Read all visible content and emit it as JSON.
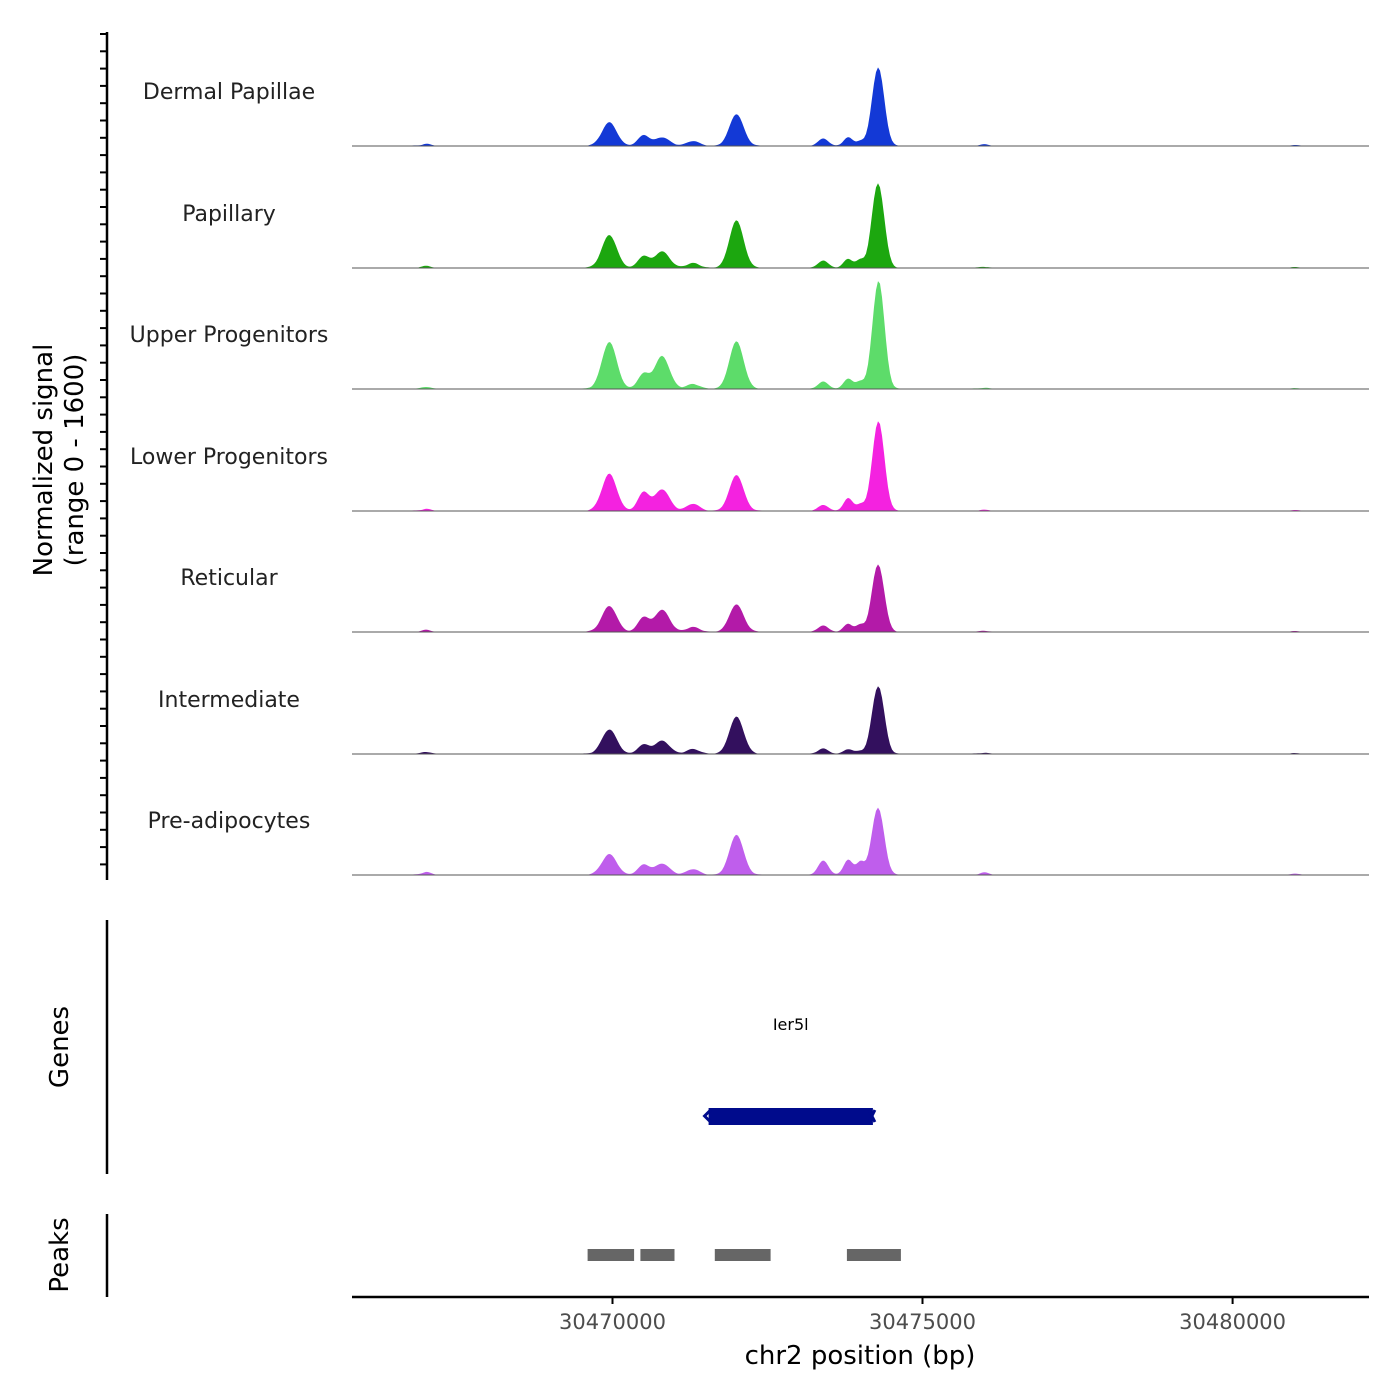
{
  "chart_data": {
    "type": "area",
    "title": "",
    "y_axis_title_line1": "Normalized signal",
    "y_axis_title_line2": "(range 0 - 1600)",
    "ylim": [
      0,
      1600
    ],
    "xlabel": "chr2 position (bp)",
    "xlim": [
      30465800,
      30482200
    ],
    "x_ticks": [
      30470000,
      30475000,
      30480000
    ],
    "x_tick_labels": [
      "30470000",
      "30475000",
      "30480000"
    ],
    "peak_centers": [
      30467000,
      30469950,
      30470500,
      30470800,
      30471300,
      30472000,
      30473400,
      30473800,
      30474000,
      30474200,
      30474300,
      30476000,
      30481000
    ],
    "tracks": [
      {
        "name": "Dermal Papillae",
        "color": "#1339d6",
        "heights": [
          40,
          500,
          230,
          180,
          100,
          680,
          160,
          180,
          100,
          330,
          1520,
          30,
          20
        ]
      },
      {
        "name": "Papillary",
        "color": "#1ca70f",
        "heights": [
          40,
          700,
          250,
          350,
          100,
          1020,
          160,
          190,
          170,
          400,
          1620,
          20,
          20
        ]
      },
      {
        "name": "Upper Progenitors",
        "color": "#5ddc6a",
        "heights": [
          40,
          1000,
          320,
          700,
          100,
          1020,
          160,
          220,
          160,
          300,
          2180,
          20,
          20
        ]
      },
      {
        "name": "Lower Progenitors",
        "color": "#f422e0",
        "heights": [
          40,
          790,
          400,
          460,
          150,
          770,
          130,
          270,
          140,
          300,
          1780,
          20,
          20
        ]
      },
      {
        "name": "Reticular",
        "color": "#b31aa8",
        "heights": [
          40,
          550,
          310,
          470,
          100,
          590,
          140,
          170,
          150,
          300,
          1300,
          20,
          20
        ]
      },
      {
        "name": "Intermediate",
        "color": "#33105e",
        "heights": [
          40,
          520,
          200,
          280,
          100,
          800,
          120,
          100,
          60,
          280,
          1320,
          20,
          20
        ]
      },
      {
        "name": "Pre-adipocytes",
        "color": "#bf5eec",
        "heights": [
          60,
          440,
          220,
          240,
          120,
          860,
          310,
          320,
          280,
          340,
          1270,
          50,
          30
        ]
      }
    ],
    "genes": {
      "title": "Genes",
      "items": [
        {
          "name": "Ier5l",
          "start": 30471550,
          "end": 30474200,
          "color": "#000b8c"
        }
      ]
    },
    "peaks": {
      "title": "Peaks",
      "color": "#666666",
      "regions": [
        [
          30469600,
          30470350
        ],
        [
          30470450,
          30471000
        ],
        [
          30471650,
          30472550
        ],
        [
          30473780,
          30474650
        ]
      ]
    }
  }
}
